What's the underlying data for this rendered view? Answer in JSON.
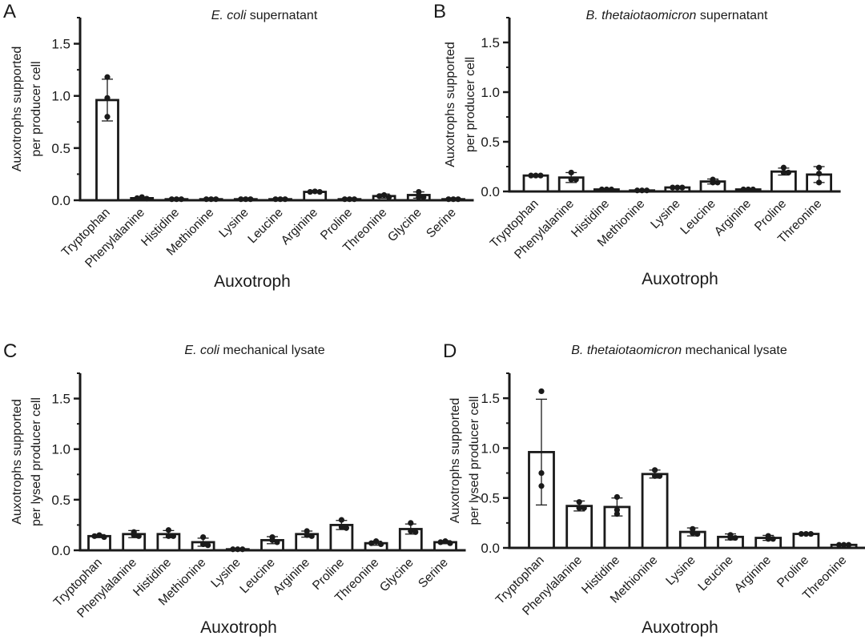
{
  "figure": {
    "colors": {
      "ink": "#1a1a1a",
      "bar_fill": "#ffffff",
      "background": "#ffffff"
    }
  },
  "chart_data": [
    {
      "panel_label": "A",
      "type": "bar",
      "title_italic": "E. coli",
      "title_rest": " supernatant",
      "xlabel": "Auxotroph",
      "ylabel_lines": [
        "Auxotrophs supported",
        "per producer cell"
      ],
      "ylim": [
        0,
        1.75
      ],
      "yticks": [
        0.0,
        0.5,
        1.0,
        1.5
      ],
      "ytick_labels": [
        "0.0",
        "0.5",
        "1.0",
        "1.5"
      ],
      "minor_tick_step": 0.25,
      "categories": [
        "Tryptophan",
        "Phenylalanine",
        "Histidine",
        "Methionine",
        "Lysine",
        "Leucine",
        "Arginine",
        "Proline",
        "Threonine",
        "Glycine",
        "Serine"
      ],
      "values": [
        0.96,
        0.02,
        0.01,
        0.01,
        0.01,
        0.01,
        0.08,
        0.01,
        0.04,
        0.05,
        0.01
      ],
      "errors": [
        0.2,
        0.01,
        0.005,
        0.005,
        0.005,
        0.005,
        0.005,
        0.005,
        0.02,
        0.03,
        0.005
      ],
      "points": [
        [
          1.18,
          0.98,
          0.8
        ],
        [
          0.03,
          0.02,
          0.015
        ],
        [
          0.01,
          0.01,
          0.01
        ],
        [
          0.01,
          0.01,
          0.01
        ],
        [
          0.01,
          0.01,
          0.01
        ],
        [
          0.01,
          0.01,
          0.01
        ],
        [
          0.085,
          0.08,
          0.08
        ],
        [
          0.01,
          0.01,
          0.01
        ],
        [
          0.05,
          0.04,
          0.03
        ],
        [
          0.08,
          0.03,
          0.03
        ],
        [
          0.01,
          0.01,
          0.01
        ]
      ]
    },
    {
      "panel_label": "B",
      "type": "bar",
      "title_italic": "B. thetaiotaomicron",
      "title_rest": " supernatant",
      "xlabel": "Auxotroph",
      "ylabel_lines": [
        "Auxotrophs supported",
        "per producer cell"
      ],
      "ylim": [
        0,
        1.75
      ],
      "yticks": [
        0.0,
        0.5,
        1.0,
        1.5
      ],
      "ytick_labels": [
        "0.0",
        "0.5",
        "1.0",
        "1.5"
      ],
      "minor_tick_step": 0.25,
      "categories": [
        "Tryptophan",
        "Phenylalanine",
        "Histidine",
        "Methionine",
        "Lysine",
        "Leucine",
        "Arginine",
        "Proline",
        "Threonine"
      ],
      "values": [
        0.16,
        0.14,
        0.02,
        0.01,
        0.04,
        0.1,
        0.02,
        0.2,
        0.17
      ],
      "errors": [
        0.005,
        0.05,
        0.005,
        0.005,
        0.005,
        0.025,
        0.005,
        0.035,
        0.08
      ],
      "points": [
        [
          0.16,
          0.16,
          0.16
        ],
        [
          0.19,
          0.12,
          0.12
        ],
        [
          0.02,
          0.02,
          0.02
        ],
        [
          0.01,
          0.01,
          0.01
        ],
        [
          0.04,
          0.04,
          0.04
        ],
        [
          0.12,
          0.09,
          0.09
        ],
        [
          0.02,
          0.02,
          0.02
        ],
        [
          0.24,
          0.19,
          0.19
        ],
        [
          0.24,
          0.18,
          0.09
        ]
      ]
    },
    {
      "panel_label": "C",
      "type": "bar",
      "title_italic": "E. coli",
      "title_rest": " mechanical lysate",
      "xlabel": "Auxotroph",
      "ylabel_lines": [
        "Auxotrophs supported",
        "per lysed producer cell"
      ],
      "ylim": [
        0,
        1.75
      ],
      "yticks": [
        0.0,
        0.5,
        1.0,
        1.5
      ],
      "ytick_labels": [
        "0.0",
        "0.5",
        "1.0",
        "1.5"
      ],
      "minor_tick_step": 0.25,
      "categories": [
        "Tryptophan",
        "Phenylalanine",
        "Histidine",
        "Methionine",
        "Lysine",
        "Leucine",
        "Arginine",
        "Proline",
        "Threonine",
        "Glycine",
        "Serine"
      ],
      "values": [
        0.14,
        0.16,
        0.16,
        0.08,
        0.01,
        0.1,
        0.16,
        0.25,
        0.07,
        0.21,
        0.08
      ],
      "errors": [
        0.015,
        0.035,
        0.035,
        0.04,
        0.005,
        0.035,
        0.03,
        0.045,
        0.02,
        0.05,
        0.015
      ],
      "points": [
        [
          0.15,
          0.14,
          0.13
        ],
        [
          0.18,
          0.15,
          0.14
        ],
        [
          0.2,
          0.14,
          0.14
        ],
        [
          0.13,
          0.06,
          0.05
        ],
        [
          0.01,
          0.01,
          0.01
        ],
        [
          0.13,
          0.1,
          0.08
        ],
        [
          0.19,
          0.15,
          0.14
        ],
        [
          0.3,
          0.23,
          0.22
        ],
        [
          0.09,
          0.07,
          0.06
        ],
        [
          0.27,
          0.19,
          0.18
        ],
        [
          0.09,
          0.08,
          0.07
        ]
      ]
    },
    {
      "panel_label": "D",
      "type": "bar",
      "title_italic": "B. thetaiotaomicron",
      "title_rest": " mechanical lysate",
      "xlabel": "Auxotroph",
      "ylabel_lines": [
        "Auxotrophs supported",
        "per lysed producer cell"
      ],
      "ylim": [
        0,
        1.75
      ],
      "yticks": [
        0.0,
        0.5,
        1.0,
        1.5
      ],
      "ytick_labels": [
        "0.0",
        "0.5",
        "1.0",
        "1.5"
      ],
      "minor_tick_step": 0.25,
      "categories": [
        "Tryptophan",
        "Phenylalanine",
        "Histidine",
        "Methionine",
        "Lysine",
        "Leucine",
        "Arginine",
        "Proline",
        "Threonine"
      ],
      "values": [
        0.96,
        0.42,
        0.41,
        0.74,
        0.16,
        0.11,
        0.1,
        0.14,
        0.03
      ],
      "errors": [
        0.53,
        0.05,
        0.09,
        0.04,
        0.04,
        0.03,
        0.025,
        0.01,
        0.005
      ],
      "points": [
        [
          1.57,
          0.75,
          0.62
        ],
        [
          0.46,
          0.4,
          0.4
        ],
        [
          0.51,
          0.38,
          0.34
        ],
        [
          0.78,
          0.72,
          0.72
        ],
        [
          0.19,
          0.15,
          0.14
        ],
        [
          0.13,
          0.1,
          0.1
        ],
        [
          0.12,
          0.09,
          0.09
        ],
        [
          0.14,
          0.14,
          0.14
        ],
        [
          0.03,
          0.03,
          0.03
        ]
      ]
    }
  ]
}
